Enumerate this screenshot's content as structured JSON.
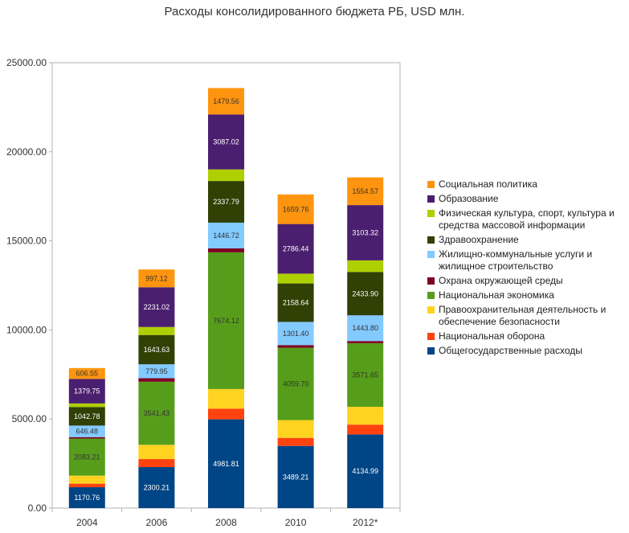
{
  "chart_data": {
    "type": "bar",
    "stacked": true,
    "title": "Расходы консолидированного бюджета РБ, USD млн.",
    "categories": [
      "2004",
      "2006",
      "2008",
      "2010",
      "2012*"
    ],
    "ylim": [
      0,
      25000
    ],
    "yticks": [
      "0.00",
      "5000.00",
      "10000.00",
      "15000.00",
      "20000.00",
      "25000.00"
    ],
    "ytick_values": [
      0,
      5000,
      10000,
      15000,
      20000,
      25000
    ],
    "grid": false,
    "legend_position": "right",
    "series": [
      {
        "name": "Общегосударственные расходы",
        "color": "#004586",
        "values": [
          1170.76,
          2300.21,
          4981.81,
          3489.21,
          4134.99
        ],
        "labels": [
          "1170.76",
          "2300.21",
          "4981.81",
          "3489.21",
          "4134.99"
        ]
      },
      {
        "name": "Национальная оборона",
        "color": "#ff420e",
        "values": [
          200,
          450,
          600,
          450,
          550
        ],
        "labels": [
          "",
          "",
          "",
          "",
          ""
        ]
      },
      {
        "name": "Правоохранительная деятельность и обеспечение безопасности",
        "color": "#ffd320",
        "values": [
          450,
          800,
          1100,
          1000,
          1000
        ],
        "labels": [
          "",
          "",
          "",
          "",
          ""
        ]
      },
      {
        "name": "Национальная экономика",
        "color": "#579d1c",
        "values": [
          2083.21,
          3541.43,
          7674.12,
          4059.7,
          3571.65
        ],
        "labels": [
          "2083.21",
          "3541.43",
          "7674.12",
          "4059.70",
          "3571.65"
        ]
      },
      {
        "name": "Охрана окружающей среды",
        "color": "#7e0021",
        "values": [
          80,
          200,
          220,
          150,
          120
        ],
        "labels": [
          "",
          "",
          "",
          "",
          ""
        ]
      },
      {
        "name": "Жилищно-коммунальные услуги и жилищное строительство",
        "color": "#83caff",
        "values": [
          646.48,
          779.95,
          1446.72,
          1301.4,
          1443.8
        ],
        "labels": [
          "646.48",
          "779.95",
          "1446.72",
          "1301.40",
          "1443.80"
        ]
      },
      {
        "name": "Здравоохранение",
        "color": "#314004",
        "values": [
          1042.78,
          1643.63,
          2337.79,
          2158.64,
          2433.9
        ],
        "labels": [
          "1042.78",
          "1643.63",
          "2337.79",
          "2158.64",
          "2433.90"
        ]
      },
      {
        "name": "Физическая культура, спорт, культура и средства массовой информации",
        "color": "#aecf00",
        "values": [
          200,
          450,
          650,
          550,
          650
        ],
        "labels": [
          "",
          "",
          "",
          "",
          ""
        ]
      },
      {
        "name": "Образование",
        "color": "#4b1f6f",
        "values": [
          1379.75,
          2231.02,
          3087.02,
          2786.44,
          3103.32
        ],
        "labels": [
          "1379.75",
          "2231.02",
          "3087.02",
          "2786.44",
          "3103.32"
        ]
      },
      {
        "name": "Социальная политика",
        "color": "#ff950e",
        "values": [
          606.55,
          997.12,
          1479.56,
          1659.76,
          1554.57
        ],
        "labels": [
          "606.55",
          "997.12",
          "1479.56",
          "1659.76",
          "1554.57"
        ]
      }
    ]
  }
}
